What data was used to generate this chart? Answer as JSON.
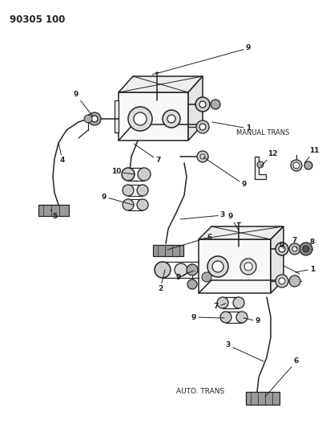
{
  "title": "90305 100",
  "bg": "#ffffff",
  "ink": "#222222",
  "manual_trans_label": "MANUAL TRANS",
  "auto_trans_label": "AUTO. TRANS",
  "figsize": [
    4.12,
    5.33
  ],
  "dpi": 100
}
